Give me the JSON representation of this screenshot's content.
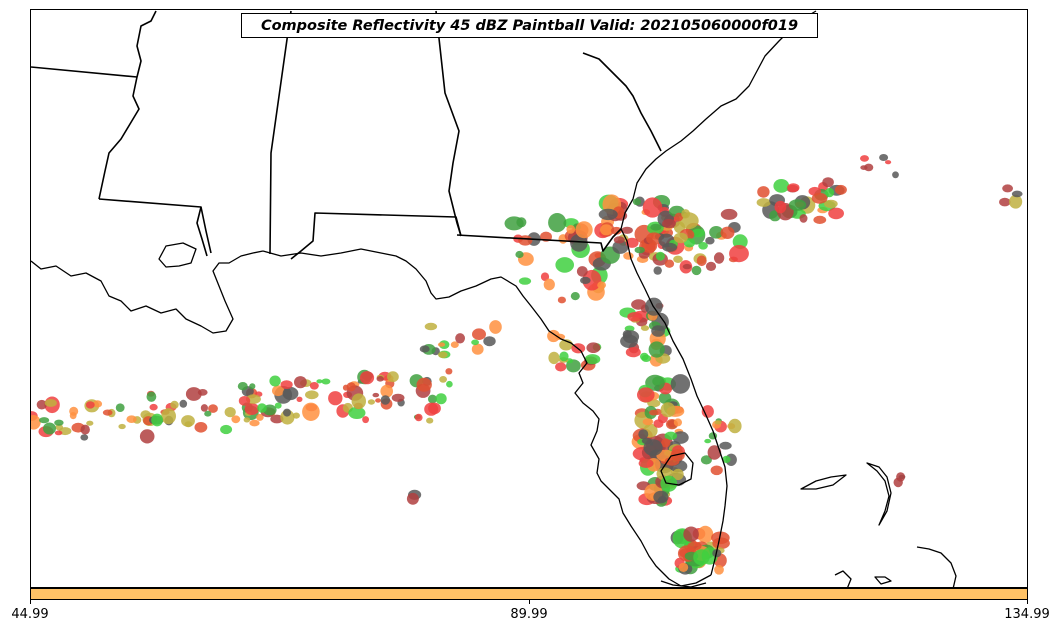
{
  "title": "Composite Reflectivity 45 dBZ Paintball Valid: 202105060000f019",
  "colorbar": {
    "color": "#FFC266",
    "ticks": [
      "44.99",
      "89.99",
      "134.99"
    ]
  },
  "colors": {
    "border": "#000000",
    "member_colors": [
      "#F04040",
      "#FF9040",
      "#40D040",
      "#C0B040",
      "#585858",
      "#B04040",
      "#40A040",
      "#E05030"
    ]
  }
}
